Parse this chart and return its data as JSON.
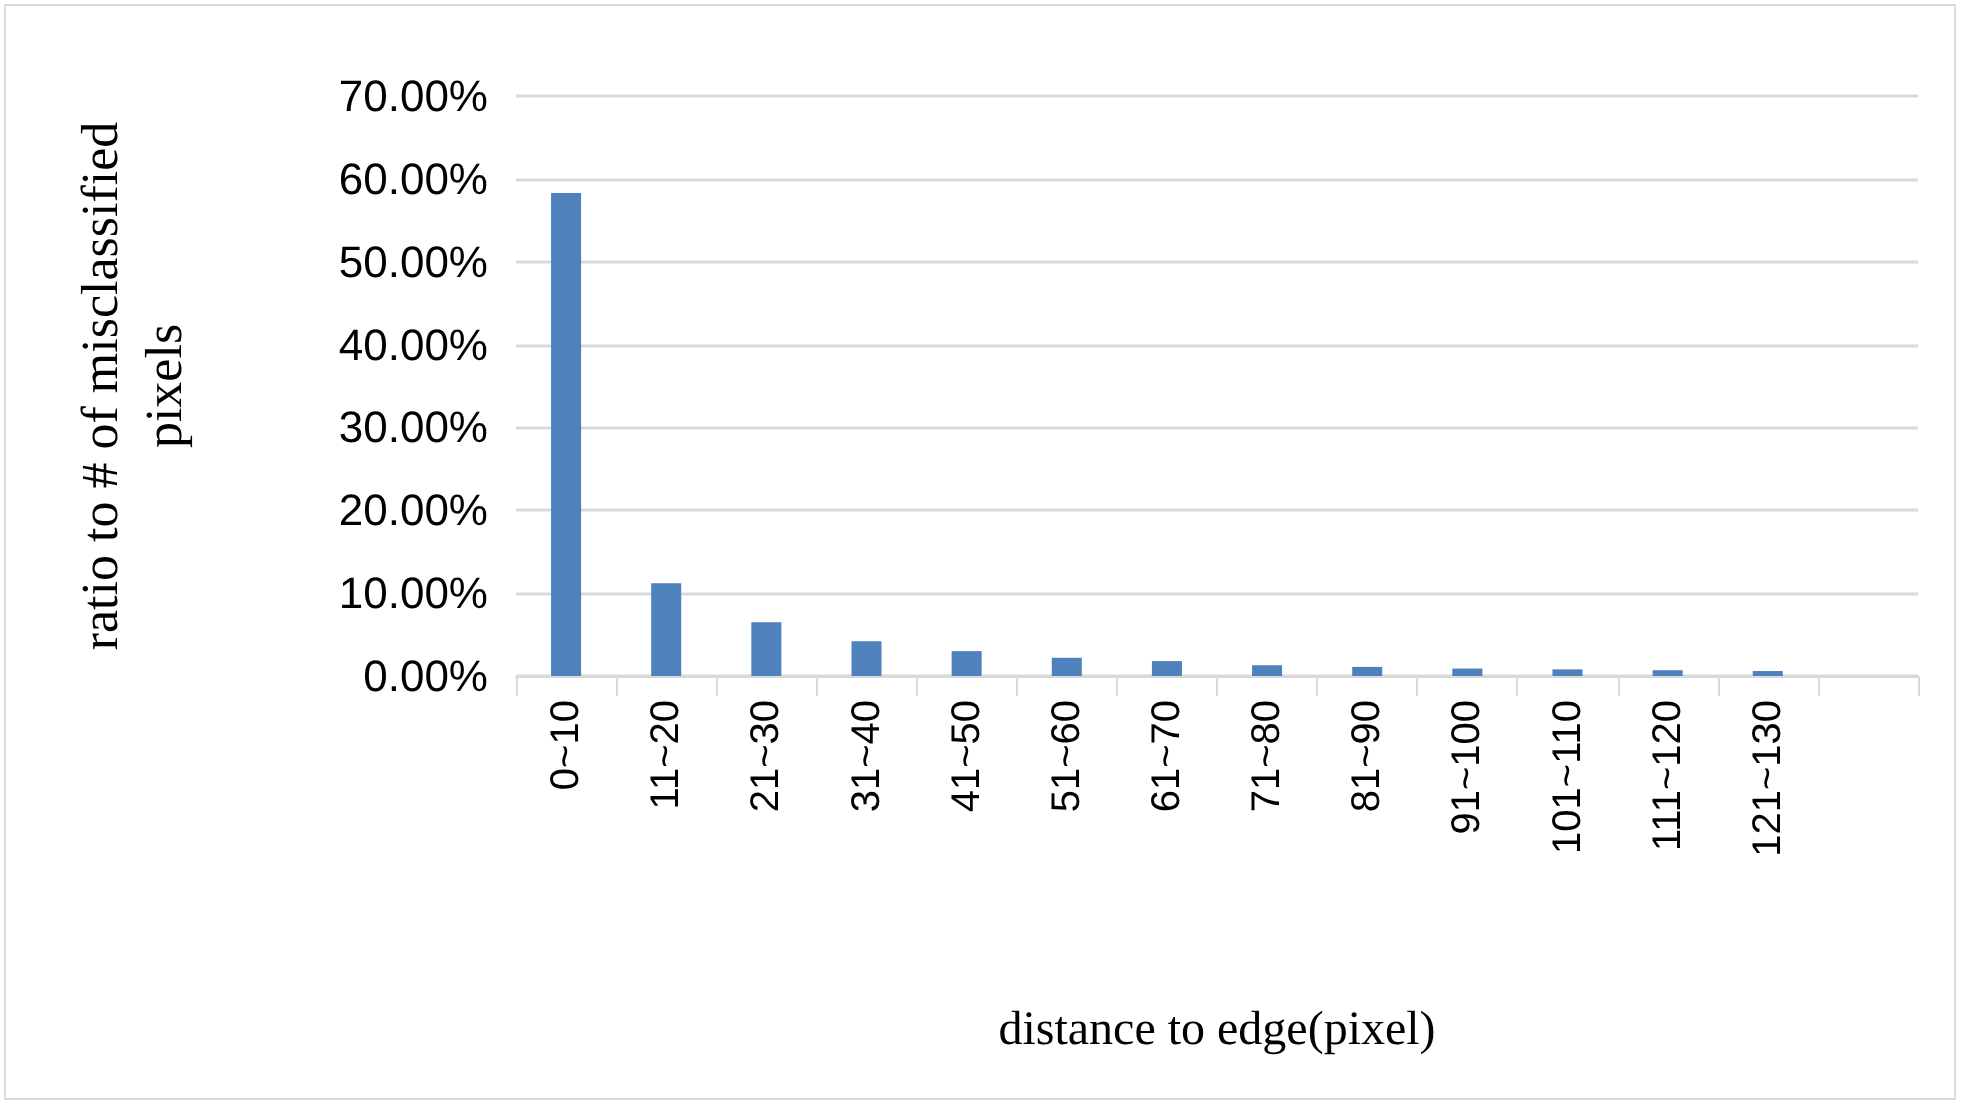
{
  "chart_data": {
    "type": "bar",
    "xlabel": "distance to edge(pixel)",
    "ylabel": "ratio to # of misclassified pixels",
    "categories": [
      "0~10",
      "11~20",
      "21~30",
      "31~40",
      "41~50",
      "51~60",
      "61~70",
      "71~80",
      "81~90",
      "91~100",
      "101~110",
      "111~120",
      "121~130",
      null
    ],
    "values": [
      58.3,
      11.2,
      6.5,
      4.2,
      3.0,
      2.2,
      1.8,
      1.3,
      1.1,
      0.9,
      0.8,
      0.7,
      0.6,
      null
    ],
    "color": "#4f81bd",
    "ylim": [
      0,
      70
    ],
    "yticks": [
      {
        "value": 0,
        "label": "0.00%"
      },
      {
        "value": 10,
        "label": "10.00%"
      },
      {
        "value": 20,
        "label": "20.00%"
      },
      {
        "value": 30,
        "label": "30.00%"
      },
      {
        "value": 40,
        "label": "40.00%"
      },
      {
        "value": 50,
        "label": "50.00%"
      },
      {
        "value": 60,
        "label": "60.00%"
      },
      {
        "value": 70,
        "label": "70.00%"
      }
    ],
    "grid": "y"
  }
}
